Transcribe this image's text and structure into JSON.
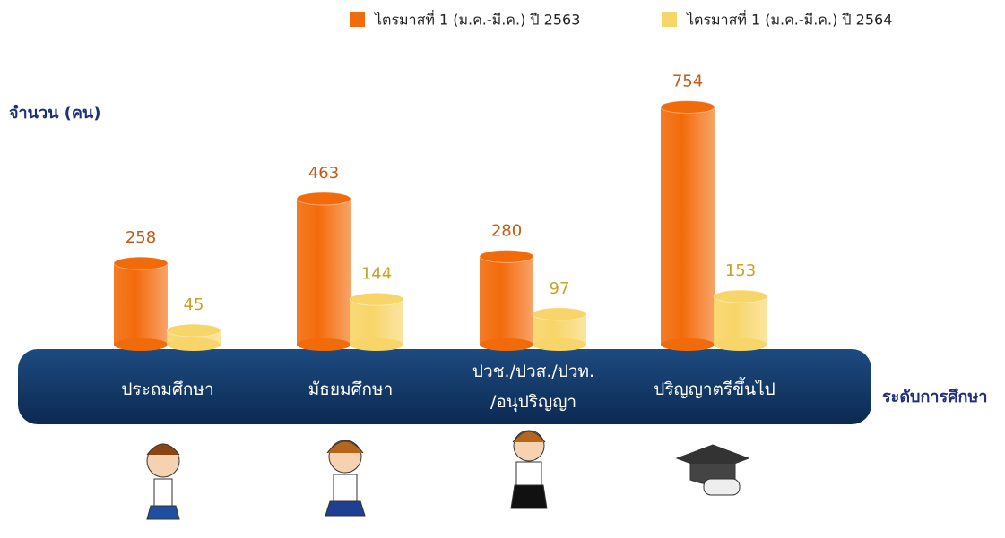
{
  "chart_data": {
    "type": "bar",
    "y_label": "จำนวน (คน)",
    "x_label": "ระดับการศึกษา",
    "categories": [
      "ประถมศึกษา",
      "มัธยมศึกษา",
      "ปวช./ปวส./ปวท.\n/อนุปริญญา",
      "ปริญญาตรีขึ้นไป"
    ],
    "series": [
      {
        "name": "ไตรมาสที่ 1 (ม.ค.-มี.ค.) ปี 2563",
        "color": "#f26b0b",
        "label_color": "#c55a11",
        "values": [
          258,
          463,
          280,
          754
        ]
      },
      {
        "name": "ไตรมาสที่ 1 (ม.ค.-มี.ค.) ปี 2564",
        "color": "#f8d568",
        "label_color": "#c9a227",
        "values": [
          45,
          144,
          97,
          153
        ]
      }
    ]
  }
}
